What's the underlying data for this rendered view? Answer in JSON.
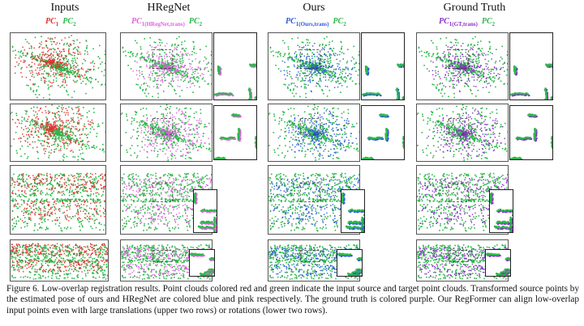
{
  "figure": {
    "columns": [
      {
        "title": "Inputs",
        "legend": [
          {
            "base": "PC",
            "sub": "1",
            "color": "#e0322d"
          },
          {
            "base": "PC",
            "sub": "2",
            "color": "#2db84b"
          }
        ]
      },
      {
        "title": "HRegNet",
        "legend": [
          {
            "base": "PC",
            "sub": "1(HRegNet,trans)",
            "color": "#e060e0"
          },
          {
            "base": "PC",
            "sub": "2",
            "color": "#2db84b"
          }
        ]
      },
      {
        "title": "Ours",
        "legend": [
          {
            "base": "PC",
            "sub": "1(Ours,trans)",
            "color": "#2f5bd8"
          },
          {
            "base": "PC",
            "sub": "2",
            "color": "#2db84b"
          }
        ]
      },
      {
        "title": "Ground Truth",
        "legend": [
          {
            "base": "PC",
            "sub": "1(GT,trans)",
            "color": "#8a2fc8"
          },
          {
            "base": "PC",
            "sub": "2",
            "color": "#2db84b"
          }
        ]
      }
    ],
    "point_colors": {
      "source": "#e0322d",
      "target": "#2db84b",
      "hregnet": "#e060e0",
      "ours": "#2f5bd8",
      "ground_truth": "#8a2fc8"
    },
    "caption": "Figure 6. Low-overlap registration results. Point clouds colored red and green indicate the input source and target point clouds. Transformed source points by the estimated pose of ours and HRegNet are colored blue and pink respectively. The ground truth is colored purple. Our RegFormer can align low-overlap input points even with large translations (upper two rows) or rotations (lower two rows)."
  }
}
